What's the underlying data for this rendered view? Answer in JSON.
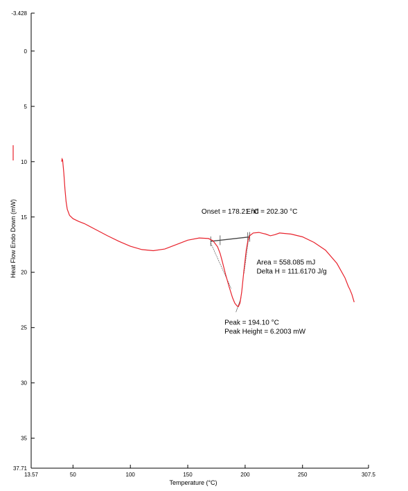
{
  "chart_data": {
    "type": "line",
    "xlabel": "Temperature (°C)",
    "ylabel": "Heat Flow Endo Down (mW)",
    "xlim": [
      13.57,
      307.5
    ],
    "ylim": [
      -3.428,
      37.71
    ],
    "y_inverted": true,
    "x_tick_labels": [
      "13.57",
      "50",
      "100",
      "150",
      "200",
      "250",
      "307.5"
    ],
    "x_tick_values": [
      13.57,
      50,
      100,
      150,
      200,
      250,
      307.5
    ],
    "y_tick_labels": [
      "-3.428",
      "0",
      "5",
      "10",
      "15",
      "20",
      "25",
      "30",
      "35",
      "37.71"
    ],
    "y_tick_values": [
      -3.428,
      0,
      5,
      10,
      15,
      20,
      25,
      30,
      35,
      37.71
    ],
    "grid": false,
    "series": [
      {
        "color": "#e8202a",
        "points": [
          [
            40.1,
            10.0
          ],
          [
            40.5,
            9.75
          ],
          [
            41.0,
            9.85
          ],
          [
            42.0,
            11.0
          ],
          [
            43.0,
            12.5
          ],
          [
            44.0,
            13.6
          ],
          [
            45.0,
            14.3
          ],
          [
            47.0,
            14.85
          ],
          [
            50.0,
            15.15
          ],
          [
            55.0,
            15.4
          ],
          [
            60.0,
            15.6
          ],
          [
            70.0,
            16.15
          ],
          [
            80.0,
            16.7
          ],
          [
            90.0,
            17.2
          ],
          [
            100.0,
            17.65
          ],
          [
            110.0,
            17.95
          ],
          [
            120.0,
            18.05
          ],
          [
            130.0,
            17.9
          ],
          [
            140.0,
            17.5
          ],
          [
            150.0,
            17.1
          ],
          [
            160.0,
            16.9
          ],
          [
            168.0,
            16.95
          ],
          [
            172.0,
            17.15
          ],
          [
            176.0,
            17.7
          ],
          [
            178.2,
            18.3
          ],
          [
            180.0,
            19.0
          ],
          [
            183.0,
            20.2
          ],
          [
            186.0,
            21.3
          ],
          [
            189.0,
            22.3
          ],
          [
            191.0,
            22.8
          ],
          [
            193.0,
            23.05
          ],
          [
            194.1,
            23.1
          ],
          [
            195.5,
            22.8
          ],
          [
            197.0,
            21.8
          ],
          [
            199.0,
            19.8
          ],
          [
            201.0,
            18.0
          ],
          [
            202.3,
            17.2
          ],
          [
            204.0,
            16.7
          ],
          [
            207.0,
            16.45
          ],
          [
            212.0,
            16.4
          ],
          [
            218.0,
            16.55
          ],
          [
            222.0,
            16.7
          ],
          [
            226.0,
            16.6
          ],
          [
            230.0,
            16.45
          ],
          [
            240.0,
            16.55
          ],
          [
            250.0,
            16.8
          ],
          [
            260.0,
            17.3
          ],
          [
            270.0,
            18.0
          ],
          [
            280.0,
            19.2
          ],
          [
            287.0,
            20.5
          ],
          [
            290.0,
            21.3
          ],
          [
            291.0,
            21.5
          ],
          [
            293.0,
            22.0
          ],
          [
            295.0,
            22.7
          ]
        ]
      }
    ],
    "baseline": [
      [
        170.0,
        17.2
      ],
      [
        204.0,
        16.8
      ]
    ],
    "onset_tangent": [
      [
        170.0,
        17.35
      ],
      [
        188.0,
        21.5
      ]
    ],
    "end_tangent": [
      [
        199.0,
        20.1
      ],
      [
        203.5,
        16.6
      ]
    ],
    "peak_tick": [
      [
        192.0,
        23.6
      ],
      [
        196.5,
        22.3
      ]
    ],
    "baseline_ticks": [
      170.0,
      178.21,
      202.3,
      204.0
    ],
    "annotations": [
      {
        "text": "Onset = 178.21 °C",
        "x": 162,
        "y": 14.7
      },
      {
        "text": "End = 202.30 °C",
        "x": 201,
        "y": 14.7
      },
      {
        "text": "Area = 558.085 mJ",
        "x": 210,
        "y": 19.3
      },
      {
        "text": "Delta H = 111.6170 J/g",
        "x": 210,
        "y": 20.1
      },
      {
        "text": "Peak = 194.10 °C",
        "x": 182,
        "y": 24.75
      },
      {
        "text": "Peak Height = 6.2003 mW",
        "x": 182,
        "y": 25.55
      }
    ]
  }
}
